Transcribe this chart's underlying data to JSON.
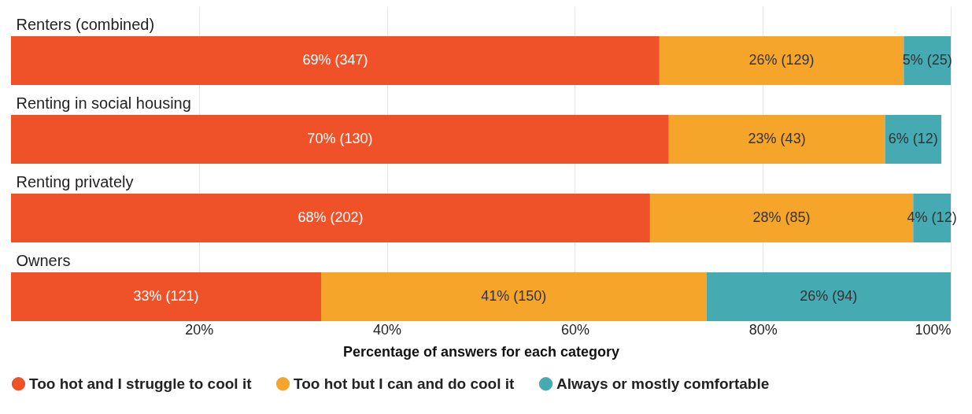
{
  "chart_data": {
    "type": "bar",
    "orientation": "horizontal",
    "stacked": true,
    "xlabel": "Percentage of answers for each category",
    "categories": [
      "Renters (combined)",
      "Renting in social housing",
      "Renting privately",
      "Owners"
    ],
    "series": [
      {
        "name": "Too hot and I struggle to cool it",
        "color": "#ef5229",
        "values": [
          69,
          70,
          68,
          33
        ],
        "value_labels": [
          "69% (347)",
          "70% (130)",
          "68% (202)",
          "33% (121)"
        ]
      },
      {
        "name": "Too hot but I can and do cool it",
        "color": "#f5a52a",
        "values": [
          26,
          23,
          28,
          41
        ],
        "value_labels": [
          "26% (129)",
          "23% (43)",
          "28% (85)",
          "41% (150)"
        ]
      },
      {
        "name": "Always or mostly comfortable",
        "color": "#45aab2",
        "values": [
          5,
          6,
          4,
          26
        ],
        "value_labels": [
          "5% (25)",
          "6% (12)",
          "4% (12)",
          "26% (94)"
        ]
      }
    ],
    "xlim": [
      0,
      100
    ],
    "xticks": [
      {
        "value": 20,
        "label": "20%"
      },
      {
        "value": 40,
        "label": "40%"
      },
      {
        "value": 60,
        "label": "60%"
      },
      {
        "value": 80,
        "label": "80%"
      },
      {
        "value": 100,
        "label": "100%"
      }
    ],
    "grid": "x",
    "legend": "bottom"
  }
}
